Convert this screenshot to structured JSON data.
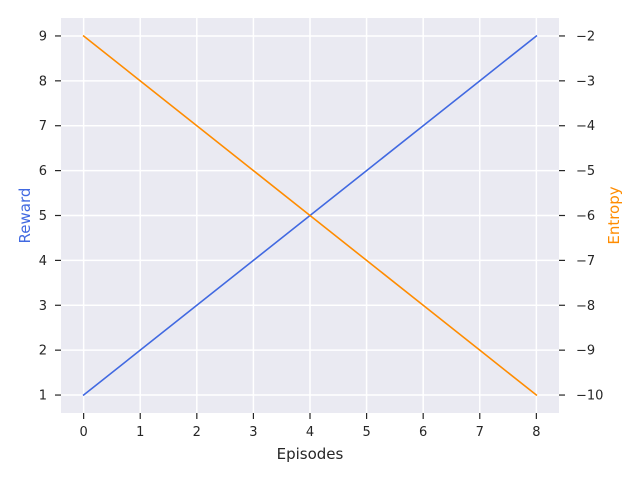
{
  "chart_data": {
    "type": "line",
    "xlabel": "Episodes",
    "ylabel_left": "Reward",
    "ylabel_right": "Entropy",
    "x": [
      0,
      1,
      2,
      3,
      4,
      5,
      6,
      7,
      8
    ],
    "xlim": [
      -0.4,
      8.4
    ],
    "ylim_left": [
      0.6,
      9.4
    ],
    "ylim_right": [
      -10.4,
      -1.6
    ],
    "x_ticks": [
      0,
      1,
      2,
      3,
      4,
      5,
      6,
      7,
      8
    ],
    "y_ticks_left": [
      1,
      2,
      3,
      4,
      5,
      6,
      7,
      8,
      9
    ],
    "y_ticks_right": [
      -10,
      -9,
      -8,
      -7,
      -6,
      -5,
      -4,
      -3,
      -2
    ],
    "x_tick_labels": [
      "0",
      "1",
      "2",
      "3",
      "4",
      "5",
      "6",
      "7",
      "8"
    ],
    "y_tick_labels_left": [
      "1",
      "2",
      "3",
      "4",
      "5",
      "6",
      "7",
      "8",
      "9"
    ],
    "y_tick_labels_right": [
      "−10",
      "−9",
      "−8",
      "−7",
      "−6",
      "−5",
      "−4",
      "−3",
      "−2"
    ],
    "grid": true,
    "series": [
      {
        "axis": "left",
        "color": "#4169e1",
        "values": [
          1,
          2,
          3,
          4,
          5,
          6,
          7,
          8,
          9
        ]
      },
      {
        "axis": "right",
        "color": "#ff8c00",
        "values": [
          -2,
          -3,
          -4,
          -5,
          -6,
          -7,
          -8,
          -9,
          -10
        ]
      }
    ],
    "colors": {
      "background": "#eaeaf2",
      "grid": "#ffffff",
      "left_label": "#4169e1",
      "right_label": "#ff8c00"
    }
  }
}
